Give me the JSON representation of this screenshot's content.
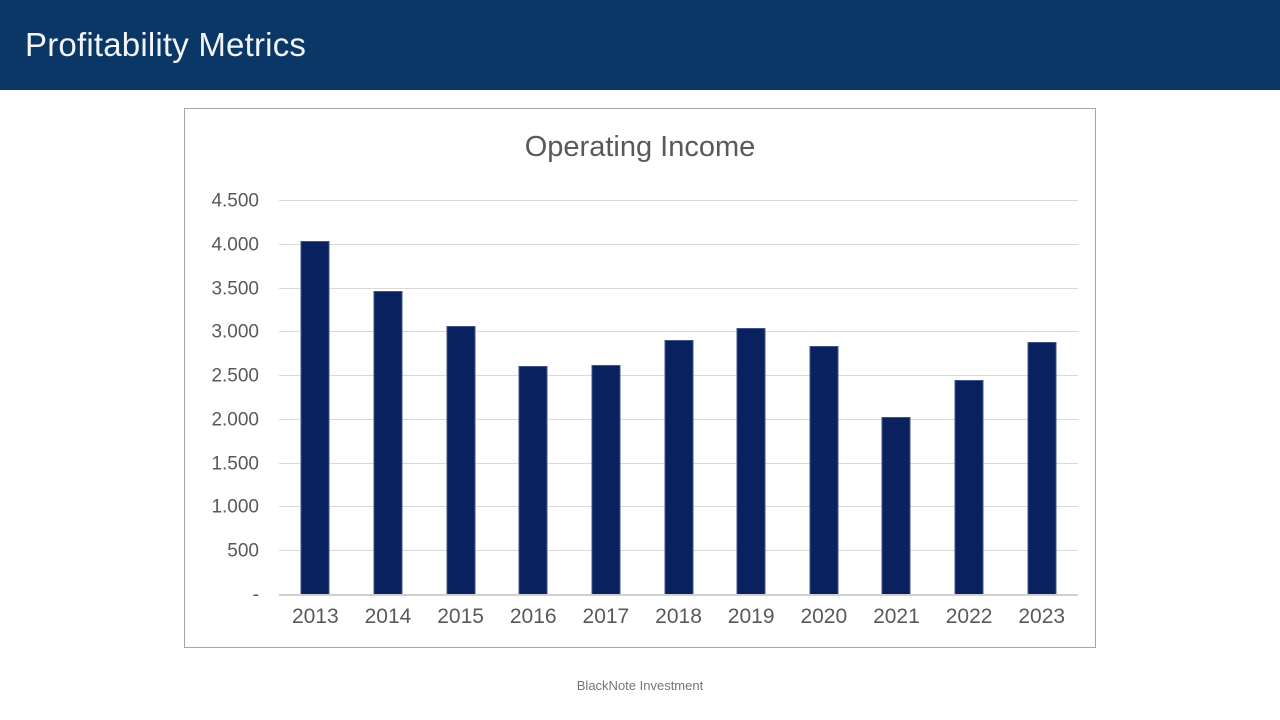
{
  "header": {
    "title": "Profitability Metrics"
  },
  "footer": {
    "text": "BlackNote Investment"
  },
  "colors": {
    "header_bg": "#0a3766",
    "bar": "#0a215f",
    "gridline": "#d9d9d9",
    "axis_text": "#595959",
    "card_border": "#a6a6a6"
  },
  "chart_data": {
    "type": "bar",
    "title": "Operating Income",
    "xlabel": "",
    "ylabel": "",
    "categories": [
      "2013",
      "2014",
      "2015",
      "2016",
      "2017",
      "2018",
      "2019",
      "2020",
      "2021",
      "2022",
      "2023"
    ],
    "values": [
      4040,
      3470,
      3075,
      2610,
      2625,
      2910,
      3055,
      2840,
      2035,
      2460,
      2895
    ],
    "ylim": [
      0,
      4500
    ],
    "ytick_interval": 500,
    "ytick_labels": [
      "-",
      "500",
      "1.000",
      "1.500",
      "2.000",
      "2.500",
      "3.000",
      "3.500",
      "4.000",
      "4.500"
    ],
    "grid": true,
    "legend_position": "none",
    "bar_color": "#0a215f"
  }
}
